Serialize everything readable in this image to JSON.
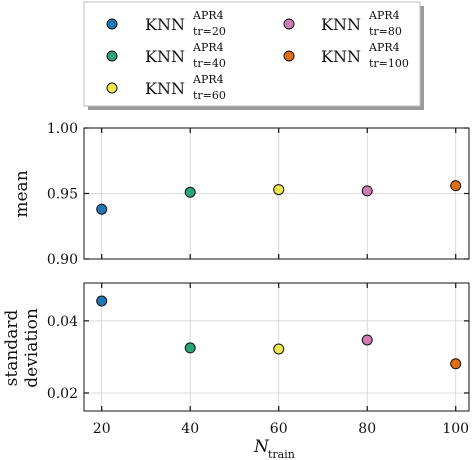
{
  "legend": {
    "entries": [
      {
        "base": "KNN",
        "sup": "APR4",
        "sub": "tr=20"
      },
      {
        "base": "KNN",
        "sup": "APR4",
        "sub": "tr=40"
      },
      {
        "base": "KNN",
        "sup": "APR4",
        "sub": "tr=60"
      },
      {
        "base": "KNN",
        "sup": "APR4",
        "sub": "tr=80"
      },
      {
        "base": "KNN",
        "sup": "APR4",
        "sub": "tr=100"
      }
    ]
  },
  "colors": {
    "tr20": "#1f78b4",
    "tr40": "#2aa578",
    "tr60": "#efe84a",
    "tr80": "#d07bb4",
    "tr100": "#e06d12"
  },
  "chart_data": [
    {
      "type": "scatter",
      "xlabel": "",
      "ylabel": "mean",
      "x": [
        20,
        40,
        60,
        80,
        100
      ],
      "y": [
        0.938,
        0.951,
        0.953,
        0.952,
        0.956
      ],
      "xlim": [
        16,
        103
      ],
      "ylim": [
        0.9,
        1.0
      ],
      "yticks": [
        "0.90",
        "0.95",
        "1.00"
      ],
      "grid": true
    },
    {
      "type": "scatter",
      "xlabel": "N_train",
      "ylabel": "standard deviation",
      "x": [
        20,
        40,
        60,
        80,
        100
      ],
      "y": [
        0.0455,
        0.0325,
        0.0322,
        0.0347,
        0.0281
      ],
      "xlim": [
        16,
        103
      ],
      "ylim": [
        0.015,
        0.0505
      ],
      "xticks": [
        "20",
        "40",
        "60",
        "80",
        "100"
      ],
      "yticks": [
        "0.02",
        "0.04"
      ],
      "grid": true
    }
  ],
  "axis_text": {
    "xlabel_base": "N",
    "xlabel_sub": "train",
    "top_ylabel": "mean",
    "bottom_ylabel_line1": "standard",
    "bottom_ylabel_line2": "deviation"
  }
}
